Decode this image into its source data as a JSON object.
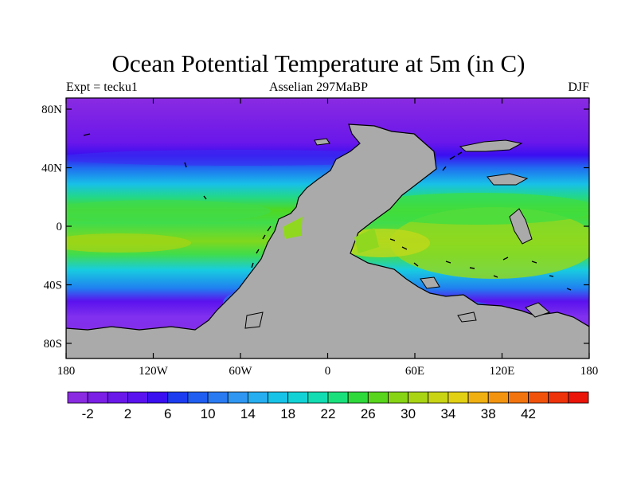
{
  "title": "Ocean Potential Temperature at 5m (in C)",
  "left_subtitle": "Expt = tecku1",
  "center_subtitle": "Asselian 297MaBP",
  "right_subtitle": "DJF",
  "y_ticks": [
    {
      "lat": 80,
      "label": "80N"
    },
    {
      "lat": 40,
      "label": "40N"
    },
    {
      "lat": 0,
      "label": "0"
    },
    {
      "lat": -40,
      "label": "40S"
    },
    {
      "lat": -80,
      "label": "80S"
    }
  ],
  "x_ticks": [
    {
      "lon": -180,
      "label": "180"
    },
    {
      "lon": -120,
      "label": "120W"
    },
    {
      "lon": -60,
      "label": "60W"
    },
    {
      "lon": 0,
      "label": "0"
    },
    {
      "lon": 60,
      "label": "60E"
    },
    {
      "lon": 120,
      "label": "120E"
    },
    {
      "lon": 180,
      "label": "180"
    }
  ],
  "colorbar": {
    "colors": [
      "#8a2be2",
      "#7b1fe6",
      "#6a17ea",
      "#5a12ee",
      "#3a0ff0",
      "#1c3cf0",
      "#1f5ef0",
      "#2a7af2",
      "#2f96f2",
      "#26aef0",
      "#18c3e8",
      "#12d2d6",
      "#12dcb2",
      "#1ae07c",
      "#2ed93c",
      "#58d51c",
      "#86d414",
      "#a8d414",
      "#c8d414",
      "#e2d014",
      "#f0b012",
      "#f39410",
      "#f2740e",
      "#f0520c",
      "#ee320a",
      "#ea1408"
    ],
    "labels": [
      "-2",
      "2",
      "6",
      "10",
      "14",
      "18",
      "22",
      "26",
      "30",
      "34",
      "38",
      "42"
    ]
  },
  "field_colors": {
    "land": "#aaaaaa",
    "polar": "#8030ee",
    "temperate": "#2080f0",
    "subtropical": "#18cce0",
    "tropical": "#40dc4c",
    "equatorial": "#90d820",
    "warmest": "#c0d81c"
  }
}
